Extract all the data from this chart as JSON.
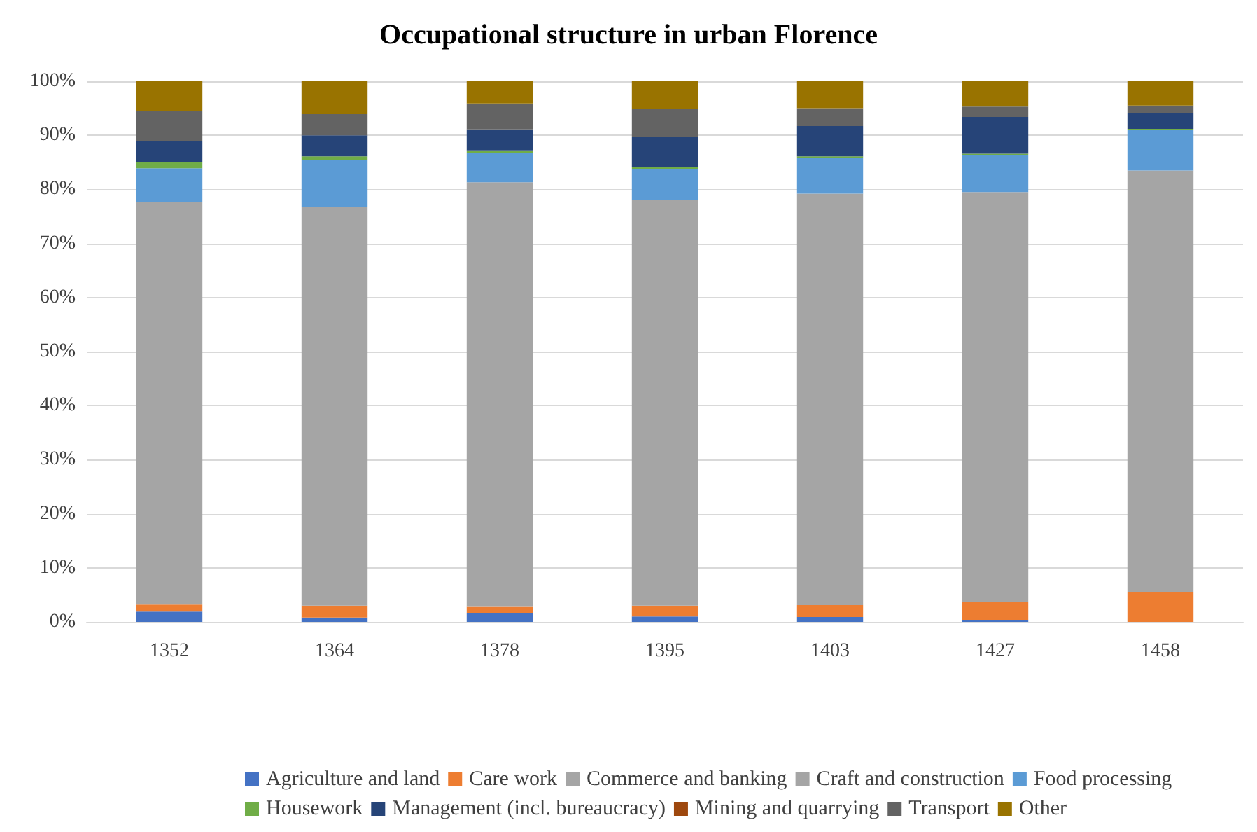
{
  "chart_data": {
    "type": "bar",
    "title": "Occupational structure in urban Florence",
    "stacked": true,
    "categories": [
      "1352",
      "1364",
      "1378",
      "1395",
      "1403",
      "1427",
      "1458"
    ],
    "series": [
      {
        "name": "Agriculture and land",
        "color": "#4472c4",
        "values": [
          1.9,
          0.8,
          1.7,
          1.0,
          0.9,
          0.4,
          0
        ]
      },
      {
        "name": "Care work",
        "color": "#ed7d31",
        "values": [
          1.3,
          2.2,
          1.1,
          2.0,
          2.2,
          3.3,
          5.5
        ]
      },
      {
        "name": "Commerce and banking",
        "color": "#a5a5a5",
        "values": [
          null,
          null,
          null,
          null,
          null,
          null,
          null
        ]
      },
      {
        "name": "Craft and construction",
        "color": "#a5a5a5",
        "values": [
          74.4,
          73.8,
          78.5,
          75.1,
          76.1,
          75.8,
          78.0
        ]
      },
      {
        "name": "Food processing",
        "color": "#5b9bd5",
        "values": [
          6.3,
          8.6,
          5.4,
          5.7,
          6.6,
          6.8,
          7.5
        ]
      },
      {
        "name": "Housework",
        "color": "#70ad47",
        "values": [
          1.1,
          0.7,
          0.5,
          0.3,
          0.3,
          0.3,
          0.2
        ]
      },
      {
        "name": "Management (incl. bureaucracy)",
        "color": "#264478",
        "values": [
          3.9,
          3.9,
          3.9,
          5.6,
          5.6,
          6.8,
          2.9
        ]
      },
      {
        "name": "Mining and quarrying",
        "color": "#9e480e",
        "values": [
          null,
          null,
          null,
          null,
          null,
          null,
          null
        ]
      },
      {
        "name": "Transport",
        "color": "#636363",
        "values": [
          5.6,
          3.9,
          4.8,
          5.2,
          3.3,
          1.9,
          1.4
        ]
      },
      {
        "name": "Other",
        "color": "#997300",
        "values": [
          5.5,
          6.1,
          4.1,
          5.1,
          5.0,
          4.7,
          4.7
        ]
      }
    ],
    "ylim": [
      0,
      100
    ],
    "yticks": [
      {
        "value": 0,
        "label": "0%"
      },
      {
        "value": 10,
        "label": "10%"
      },
      {
        "value": 20,
        "label": "20%"
      },
      {
        "value": 30,
        "label": "30%"
      },
      {
        "value": 40,
        "label": "40%"
      },
      {
        "value": 50,
        "label": "50%"
      },
      {
        "value": 60,
        "label": "60%"
      },
      {
        "value": 70,
        "label": "70%"
      },
      {
        "value": 80,
        "label": "80%"
      },
      {
        "value": 90,
        "label": "90%"
      },
      {
        "value": 100,
        "label": "100%"
      }
    ],
    "grid": "y",
    "legend": "bottom"
  }
}
